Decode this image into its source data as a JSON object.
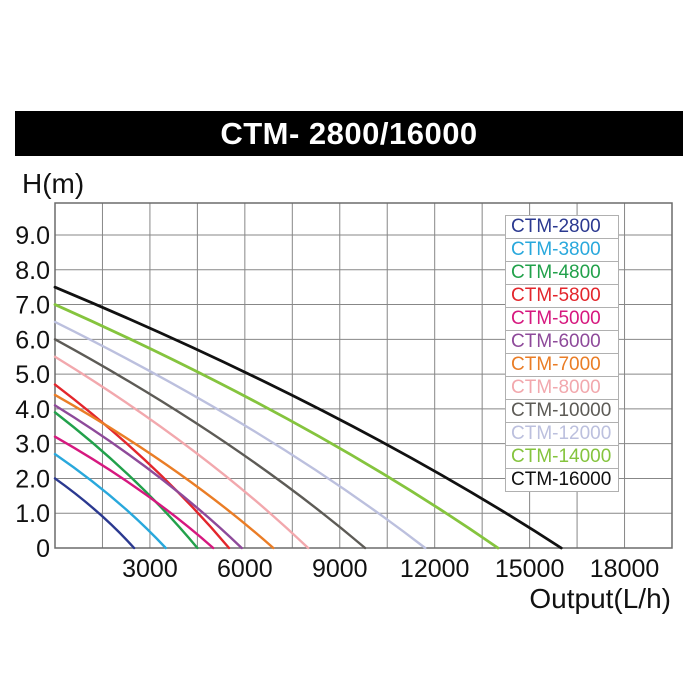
{
  "title_bar": {
    "text": "CTM- 2800/16000"
  },
  "y_axis": {
    "label": "H(m)",
    "ticks": [
      "9.0",
      "8.0",
      "7.0",
      "6.0",
      "5.0",
      "4.0",
      "3.0",
      "2.0",
      "1.0",
      "0"
    ]
  },
  "x_axis": {
    "label": "Output(L/h)",
    "ticks": [
      "3000",
      "6000",
      "9000",
      "12000",
      "15000",
      "18000"
    ]
  },
  "chart_data": {
    "type": "line",
    "title": "CTM- 2800/16000",
    "xlabel": "Output(L/h)",
    "ylabel": "H(m)",
    "xlim": [
      0,
      19500
    ],
    "ylim": [
      0,
      9.92
    ],
    "x_grid_step": 1500,
    "y_grid_step": 1,
    "grid": true,
    "legend_position": "upper right",
    "x_ticks": [
      3000,
      6000,
      9000,
      12000,
      15000,
      18000
    ],
    "y_ticks": [
      {
        "label": "9.0",
        "value": 9
      },
      {
        "label": "8.0",
        "value": 8
      },
      {
        "label": "7.0",
        "value": 7
      },
      {
        "label": "6.0",
        "value": 6
      },
      {
        "label": "5.0",
        "value": 5
      },
      {
        "label": "4.0",
        "value": 4
      },
      {
        "label": "3.0",
        "value": 3
      },
      {
        "label": "2.0",
        "value": 2
      },
      {
        "label": "1.0",
        "value": 1
      },
      {
        "label": "0",
        "value": 0
      }
    ],
    "series": [
      {
        "name": "CTM-2800",
        "color": "#2b3990",
        "max_head_m": 2.0,
        "max_flow_lh": 2500,
        "points": [
          [
            0,
            2.0
          ],
          [
            1350,
            1.0
          ],
          [
            2500,
            0
          ]
        ]
      },
      {
        "name": "CTM-3800",
        "color": "#29a8dc",
        "max_head_m": 2.7,
        "max_flow_lh": 3500,
        "points": [
          [
            0,
            2.7
          ],
          [
            1890,
            1.4
          ],
          [
            3500,
            0
          ]
        ]
      },
      {
        "name": "CTM-4800",
        "color": "#22a14b",
        "max_head_m": 3.9,
        "max_flow_lh": 4500,
        "points": [
          [
            0,
            3.9
          ],
          [
            2430,
            2.0
          ],
          [
            4500,
            0
          ]
        ]
      },
      {
        "name": "CTM-5800",
        "color": "#e3262c",
        "max_head_m": 4.7,
        "max_flow_lh": 5500,
        "points": [
          [
            0,
            4.7
          ],
          [
            2970,
            2.4
          ],
          [
            5500,
            0
          ]
        ]
      },
      {
        "name": "CTM-5000",
        "color": "#d6187f",
        "max_head_m": 3.2,
        "max_flow_lh": 5000,
        "points": [
          [
            0,
            3.2
          ],
          [
            2700,
            1.6
          ],
          [
            5000,
            0
          ]
        ]
      },
      {
        "name": "CTM-6000",
        "color": "#8e4a9a",
        "max_head_m": 4.1,
        "max_flow_lh": 5900,
        "points": [
          [
            0,
            4.1
          ],
          [
            3190,
            2.1
          ],
          [
            5900,
            0
          ]
        ]
      },
      {
        "name": "CTM-7000",
        "color": "#ea7d26",
        "max_head_m": 4.4,
        "max_flow_lh": 6900,
        "points": [
          [
            0,
            4.4
          ],
          [
            3730,
            2.3
          ],
          [
            6900,
            0
          ]
        ]
      },
      {
        "name": "CTM-8000",
        "color": "#f2a8ad",
        "max_head_m": 5.5,
        "max_flow_lh": 8000,
        "points": [
          [
            0,
            5.5
          ],
          [
            4320,
            2.8
          ],
          [
            8000,
            0
          ]
        ]
      },
      {
        "name": "CTM-10000",
        "color": "#5d5b56",
        "max_head_m": 6.0,
        "max_flow_lh": 9800,
        "points": [
          [
            0,
            6.0
          ],
          [
            5290,
            3.1
          ],
          [
            9800,
            0
          ]
        ]
      },
      {
        "name": "CTM-12000",
        "color": "#bcc0de",
        "max_head_m": 6.5,
        "max_flow_lh": 11700,
        "points": [
          [
            0,
            6.5
          ],
          [
            6320,
            3.3
          ],
          [
            11700,
            0
          ]
        ]
      },
      {
        "name": "CTM-14000",
        "color": "#85c43e",
        "max_head_m": 7.0,
        "max_flow_lh": 14000,
        "points": [
          [
            0,
            7.0
          ],
          [
            7560,
            3.6
          ],
          [
            14000,
            0
          ]
        ]
      },
      {
        "name": "CTM-16000",
        "color": "#111111",
        "max_head_m": 7.5,
        "max_flow_lh": 16000,
        "points": [
          [
            0,
            7.5
          ],
          [
            8640,
            3.9
          ],
          [
            16000,
            0
          ]
        ]
      }
    ]
  }
}
